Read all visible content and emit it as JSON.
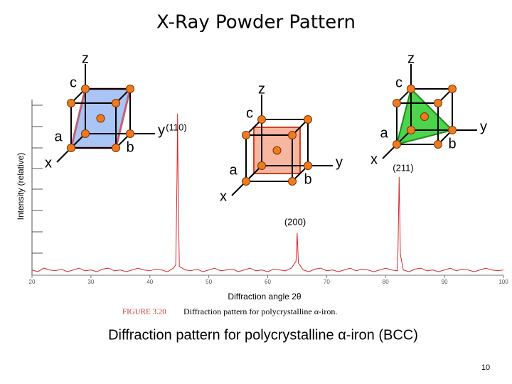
{
  "chart_data": {
    "type": "line",
    "title": "X-Ray Powder Pattern",
    "subtitle": "Diffraction pattern for polycrystalline α-iron (BCC)",
    "x_label": "Diffraction angle 2θ",
    "y_label": "Intensity (relative)",
    "caption": {
      "figure": "FIGURE 3.20",
      "text": "Diffraction pattern for polycrystalline α-iron."
    },
    "page_number": "10",
    "peak_labels": [
      "(110)",
      "(200)",
      "(211)"
    ],
    "cube_labels": [
      [
        "z",
        "c",
        "a",
        "b",
        "x",
        "y"
      ],
      [
        "z",
        "c",
        "a",
        "b",
        "x",
        "y"
      ],
      [
        "z",
        "c",
        "a",
        "b",
        "x",
        "y"
      ]
    ],
    "color": "#d42a2a",
    "xlim": [
      20,
      100
    ],
    "xticks": [
      20,
      30,
      40,
      50,
      60,
      70,
      80,
      90,
      100
    ],
    "ylim": [
      0,
      100
    ],
    "x": [
      20,
      21,
      22,
      23,
      24,
      25,
      26,
      27,
      28,
      29,
      30,
      31,
      32,
      33,
      34,
      35,
      36,
      37,
      38,
      39,
      40,
      41,
      42,
      43,
      44,
      44.4,
      44.6,
      44.7,
      44.8,
      45,
      46,
      47,
      48,
      49,
      50,
      51,
      52,
      53,
      54,
      55,
      56,
      57,
      58,
      59,
      60,
      61,
      62,
      63,
      64,
      64.8,
      65,
      65.2,
      66,
      67,
      68,
      69,
      70,
      71,
      72,
      73,
      74,
      75,
      76,
      77,
      78,
      79,
      80,
      81,
      82,
      82.1,
      82.3,
      82.5,
      83,
      84,
      85,
      86,
      87,
      88,
      89,
      90,
      91,
      92,
      93,
      94,
      95,
      96,
      97,
      98,
      99,
      100
    ],
    "values": [
      3,
      2,
      4,
      3,
      2.5,
      3.5,
      2,
      3,
      4,
      2.5,
      3,
      2,
      3.5,
      4,
      2.5,
      3,
      2,
      3,
      4,
      3,
      2.5,
      3.5,
      3,
      2,
      4,
      6,
      55,
      92,
      50,
      5,
      3,
      2.5,
      3.5,
      2,
      3,
      4,
      2.5,
      3,
      3.5,
      2,
      3,
      4,
      2.5,
      3,
      2,
      3.5,
      3,
      2.5,
      4,
      8,
      24,
      7,
      3,
      2,
      3.5,
      4,
      2.5,
      3,
      2,
      3,
      4,
      2.5,
      3.5,
      3,
      2,
      3,
      4,
      3,
      2.5,
      15,
      56,
      12,
      3,
      2,
      3.5,
      4,
      2.5,
      3,
      2,
      3,
      4,
      2.5,
      3.5,
      3,
      2,
      3,
      4,
      3,
      2.5,
      3
    ]
  }
}
